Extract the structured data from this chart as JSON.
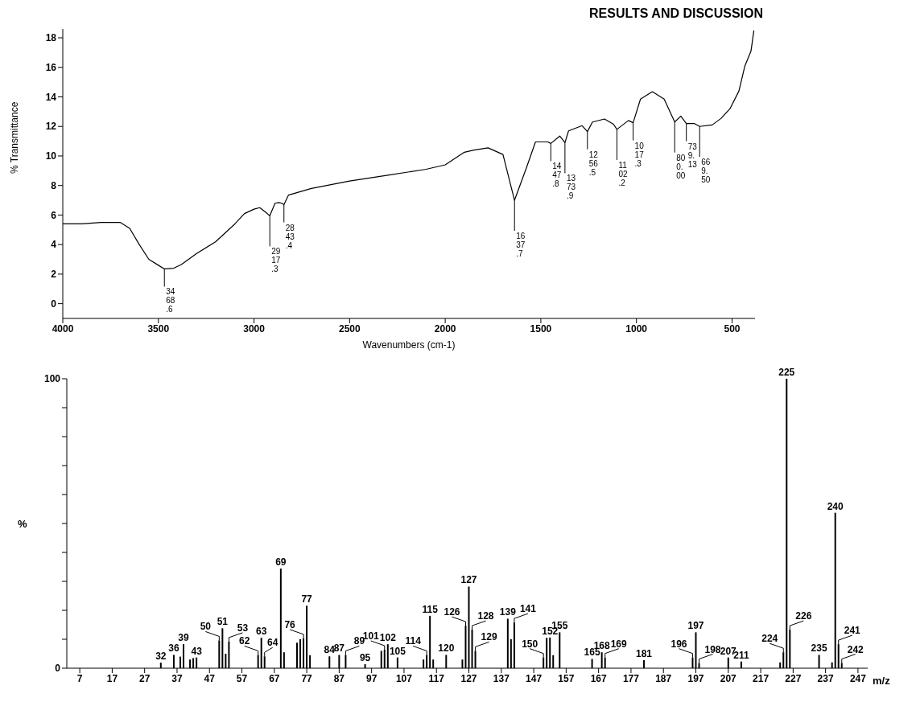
{
  "chart_data": [
    {
      "type": "line",
      "xlabel": "Wavenumbers (cm-1)",
      "ylabel": "% Transmittance",
      "annotations": [
        "RESULTS AND DISCUSSION",
        {
          "text": "3468.6",
          "x": 3468.6,
          "y": 2.35
        },
        {
          "text": "2917.3",
          "x": 2917.3,
          "y": 5.95
        },
        {
          "text": "2843.4",
          "x": 2843.4,
          "y": 6.7
        },
        {
          "text": "1637.7",
          "x": 1637.7,
          "y": 7.0
        },
        {
          "text": "1447.8",
          "x": 1447.8,
          "y": 10.85
        },
        {
          "text": "1373.9",
          "x": 1373.9,
          "y": 10.9
        },
        {
          "text": "1256.5",
          "x": 1256.5,
          "y": 11.65
        },
        {
          "text": "1102.2",
          "x": 1102.2,
          "y": 11.8
        },
        {
          "text": "1017.3",
          "x": 1017.3,
          "y": 12.25
        },
        {
          "text": "800.00",
          "x": 800,
          "y": 12.3
        },
        {
          "text": "739.13",
          "x": 739.13,
          "y": 12.2
        },
        {
          "text": "669.50",
          "x": 669.5,
          "y": 12.0
        }
      ],
      "x": [
        4000,
        3900,
        3800,
        3700,
        3650,
        3600,
        3550,
        3500,
        3468.6,
        3420,
        3380,
        3300,
        3200,
        3100,
        3050,
        3000,
        2970,
        2940,
        2917.3,
        2890,
        2870,
        2855,
        2843.4,
        2820,
        2700,
        2500,
        2300,
        2100,
        2000,
        1900,
        1850,
        1776,
        1698,
        1637.7,
        1574,
        1528,
        1464,
        1447.8,
        1401,
        1373.9,
        1355,
        1284,
        1256.5,
        1230,
        1167,
        1120,
        1102.2,
        1042,
        1017.3,
        979,
        917,
        855,
        800,
        768,
        739.13,
        698,
        669.5,
        604,
        557,
        511,
        464,
        433,
        401,
        386
      ],
      "series": [
        {
          "color": "#000000",
          "values": [
            5.4,
            5.4,
            5.5,
            5.5,
            5.1,
            4.0,
            3.0,
            2.6,
            2.35,
            2.4,
            2.65,
            3.4,
            4.2,
            5.4,
            6.1,
            6.4,
            6.5,
            6.2,
            5.95,
            6.8,
            6.85,
            6.8,
            6.7,
            7.35,
            7.8,
            8.3,
            8.7,
            9.1,
            9.4,
            10.25,
            10.4,
            10.55,
            10.1,
            7.0,
            9.25,
            10.95,
            10.95,
            10.85,
            11.35,
            10.9,
            11.7,
            12.05,
            11.65,
            12.3,
            12.5,
            12.15,
            11.8,
            12.4,
            12.25,
            13.85,
            14.35,
            13.85,
            12.3,
            12.7,
            12.2,
            12.2,
            12.0,
            12.1,
            12.55,
            13.2,
            14.4,
            16.1,
            17.1,
            18.5
          ]
        }
      ],
      "xlim": [
        4000,
        380
      ],
      "xticks": [
        4000,
        3500,
        3000,
        2500,
        2000,
        1500,
        1000,
        500
      ],
      "ylim": [
        -1,
        18.6
      ],
      "yticks": [
        0,
        2,
        4,
        6,
        8,
        10,
        12,
        14,
        16,
        18
      ]
    },
    {
      "type": "bar",
      "ylabel": "%",
      "xlabel": "m/z",
      "x": [
        32,
        36,
        38,
        39,
        41,
        42,
        43,
        50,
        51,
        52,
        53,
        62,
        63,
        64,
        69,
        70,
        74,
        75,
        76,
        77,
        78,
        84,
        87,
        89,
        95,
        100,
        101,
        102,
        105,
        113,
        114,
        115,
        116,
        120,
        125,
        126,
        127,
        128,
        129,
        139,
        140,
        141,
        150,
        151,
        152,
        153,
        155,
        165,
        168,
        169,
        181,
        196,
        197,
        198,
        207,
        211,
        223,
        224,
        225,
        226,
        235,
        239,
        240,
        241,
        242
      ],
      "values": [
        1.9,
        4.6,
        4.0,
        8.3,
        3.0,
        3.5,
        3.7,
        9.6,
        13.8,
        5.0,
        9.2,
        4.6,
        10.5,
        4.1,
        34.4,
        5.5,
        8.8,
        10.0,
        10.3,
        21.6,
        4.5,
        4.1,
        4.6,
        4.6,
        1.4,
        6.0,
        6.4,
        8.3,
        3.7,
        3.0,
        4.6,
        18.1,
        3.0,
        4.6,
        3.0,
        14.7,
        28.2,
        13.3,
        6.0,
        17.1,
        10.0,
        15.8,
        3.7,
        10.5,
        10.6,
        4.5,
        12.4,
        3.2,
        5.5,
        3.7,
        2.8,
        3.7,
        12.4,
        1.8,
        3.7,
        2.3,
        2.0,
        5.5,
        100,
        13.3,
        4.6,
        2.0,
        53.7,
        8.3,
        1.8
      ],
      "annotations": [
        {
          "text": "32",
          "x": 32,
          "y": 1.9
        },
        {
          "text": "36",
          "x": 36,
          "y": 4.6
        },
        {
          "text": "39",
          "x": 39,
          "y": 8.3
        },
        {
          "text": "43",
          "x": 43,
          "y": 3.7
        },
        {
          "text": "50",
          "x": 50,
          "y": 9.6
        },
        {
          "text": "51",
          "x": 51,
          "y": 13.8
        },
        {
          "text": "53",
          "x": 53,
          "y": 9.2
        },
        {
          "text": "62",
          "x": 62,
          "y": 4.6
        },
        {
          "text": "63",
          "x": 63,
          "y": 10.5
        },
        {
          "text": "64",
          "x": 64,
          "y": 4.1
        },
        {
          "text": "69",
          "x": 69,
          "y": 34.4
        },
        {
          "text": "76",
          "x": 76,
          "y": 10.3
        },
        {
          "text": "77",
          "x": 77,
          "y": 21.6
        },
        {
          "text": "84",
          "x": 84,
          "y": 4.1
        },
        {
          "text": "87",
          "x": 87,
          "y": 4.6
        },
        {
          "text": "89",
          "x": 89,
          "y": 4.6
        },
        {
          "text": "95",
          "x": 95,
          "y": 1.4
        },
        {
          "text": "101",
          "x": 101,
          "y": 6.4
        },
        {
          "text": "102",
          "x": 102,
          "y": 8.3
        },
        {
          "text": "105",
          "x": 105,
          "y": 3.7
        },
        {
          "text": "114",
          "x": 114,
          "y": 4.6
        },
        {
          "text": "115",
          "x": 115,
          "y": 18.1
        },
        {
          "text": "120",
          "x": 120,
          "y": 4.6
        },
        {
          "text": "126",
          "x": 126,
          "y": 14.7
        },
        {
          "text": "127",
          "x": 127,
          "y": 28.2
        },
        {
          "text": "128",
          "x": 128,
          "y": 13.3
        },
        {
          "text": "129",
          "x": 129,
          "y": 6.0
        },
        {
          "text": "139",
          "x": 139,
          "y": 17.1
        },
        {
          "text": "141",
          "x": 141,
          "y": 15.8
        },
        {
          "text": "150",
          "x": 150,
          "y": 3.7
        },
        {
          "text": "152",
          "x": 152,
          "y": 10.6
        },
        {
          "text": "155",
          "x": 155,
          "y": 12.4
        },
        {
          "text": "165",
          "x": 165,
          "y": 3.2
        },
        {
          "text": "168",
          "x": 168,
          "y": 5.5
        },
        {
          "text": "169",
          "x": 169,
          "y": 3.7
        },
        {
          "text": "181",
          "x": 181,
          "y": 2.8
        },
        {
          "text": "196",
          "x": 196,
          "y": 3.7
        },
        {
          "text": "197",
          "x": 197,
          "y": 12.4
        },
        {
          "text": "198",
          "x": 198,
          "y": 1.8
        },
        {
          "text": "207",
          "x": 207,
          "y": 3.7
        },
        {
          "text": "211",
          "x": 211,
          "y": 2.3
        },
        {
          "text": "224",
          "x": 224,
          "y": 5.5
        },
        {
          "text": "225",
          "x": 225,
          "y": 100
        },
        {
          "text": "226",
          "x": 226,
          "y": 13.3
        },
        {
          "text": "235",
          "x": 235,
          "y": 4.6
        },
        {
          "text": "240",
          "x": 240,
          "y": 53.7
        },
        {
          "text": "241",
          "x": 241,
          "y": 8.3
        },
        {
          "text": "242",
          "x": 242,
          "y": 1.8
        }
      ],
      "color": "#000000",
      "xlim": [
        3,
        250
      ],
      "xticks": [
        7,
        17,
        27,
        37,
        47,
        57,
        67,
        77,
        87,
        97,
        107,
        117,
        127,
        137,
        147,
        157,
        167,
        177,
        187,
        197,
        207,
        217,
        227,
        237,
        247
      ],
      "ylim": [
        0,
        100
      ],
      "yticks": [
        0,
        {
          "value": 10,
          "label": null
        },
        {
          "value": 20,
          "label": null
        },
        {
          "value": 30,
          "label": null
        },
        {
          "value": 40,
          "label": null
        },
        {
          "value": 50,
          "label": null
        },
        {
          "value": 60,
          "label": null
        },
        {
          "value": 70,
          "label": null
        },
        {
          "value": 80,
          "label": null
        },
        {
          "value": 90,
          "label": null
        },
        100
      ]
    }
  ]
}
